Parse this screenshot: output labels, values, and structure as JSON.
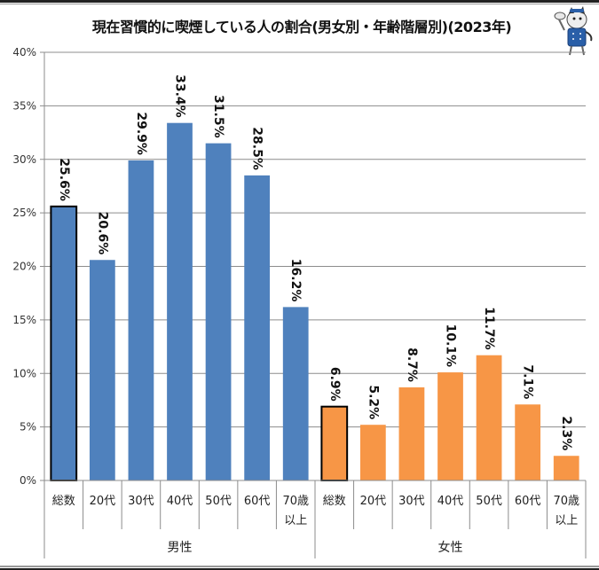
{
  "title": "現在習慣的に喫煙している人の割合(男女別・年齢階層別)(2023年)",
  "mascot": "smoking-cat-mascot",
  "colors": {
    "male": "#4f81bd",
    "female": "#f79646",
    "highlight_border": "#000000",
    "grid": "#8c8c8c",
    "axis": "#8c8c8c"
  },
  "chart_data": {
    "type": "bar",
    "title": "現在習慣的に喫煙している人の割合(男女別・年齢階層別)(2023年)",
    "xlabel": "",
    "ylabel": "",
    "ylim": [
      0,
      40
    ],
    "yticks": [
      0,
      5,
      10,
      15,
      20,
      25,
      30,
      35,
      40
    ],
    "ytick_labels": [
      "0%",
      "5%",
      "10%",
      "15%",
      "20%",
      "25%",
      "30%",
      "35%",
      "40%"
    ],
    "grid": true,
    "legend": "none",
    "groups": [
      {
        "name": "男性",
        "color": "#4f81bd",
        "categories": [
          "総数",
          "20代",
          "30代",
          "40代",
          "50代",
          "60代",
          "70歳\n以上"
        ],
        "values": [
          25.6,
          20.6,
          29.9,
          33.4,
          31.5,
          28.5,
          16.2
        ],
        "labels": [
          "25.6%",
          "20.6%",
          "29.9%",
          "33.4%",
          "31.5%",
          "28.5%",
          "16.2%"
        ],
        "highlight_index": 0
      },
      {
        "name": "女性",
        "color": "#f79646",
        "categories": [
          "総数",
          "20代",
          "30代",
          "40代",
          "50代",
          "60代",
          "70歳\n以上"
        ],
        "values": [
          6.9,
          5.2,
          8.7,
          10.1,
          11.7,
          7.1,
          2.3
        ],
        "labels": [
          "6.9%",
          "5.2%",
          "8.7%",
          "10.1%",
          "11.7%",
          "7.1%",
          "2.3%"
        ],
        "highlight_index": 0
      }
    ]
  }
}
